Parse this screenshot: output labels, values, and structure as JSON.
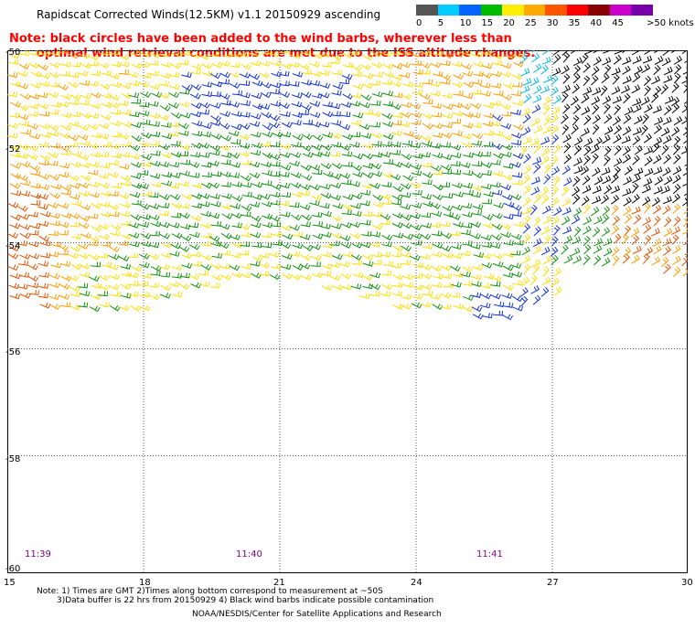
{
  "title": "Rapidscat Corrected Winds(12.5KM) v1.1 20150929 ascending",
  "note": {
    "line1": "Note: black circles have been added to the wind barbs, wherever less than",
    "line2": "optimal wind retrieval conditions are met due to the ISS altitude changes."
  },
  "color_scale": {
    "labels": [
      "0",
      "5",
      "10",
      "15",
      "20",
      "25",
      "30",
      "35",
      "40",
      "45",
      ">50 knots"
    ],
    "colors": [
      "#555555",
      "#00ccff",
      "#0066ff",
      "#00bb00",
      "#ffee00",
      "#ffaa00",
      "#ff5500",
      "#ff0000",
      "#880000",
      "#cc00cc",
      "#7700aa"
    ]
  },
  "map": {
    "lat_labels": [
      "-50",
      "-52",
      "-54",
      "-56",
      "-58",
      "-60"
    ],
    "lon_labels": [
      "15",
      "18",
      "21",
      "24",
      "27",
      "30"
    ],
    "time_labels": [
      "11:39",
      "11:40",
      "11:41"
    ]
  },
  "footnotes": {
    "line1": "Note: 1) Times are GMT 2)Times along bottom correspond to measurement at ~50S",
    "line2": "3)Data buffer is 22 hrs from 20150929 4) Black wind barbs indicate possible contamination"
  },
  "credit": "NOAA/NESDIS/Center for Satellite Applications and Research"
}
